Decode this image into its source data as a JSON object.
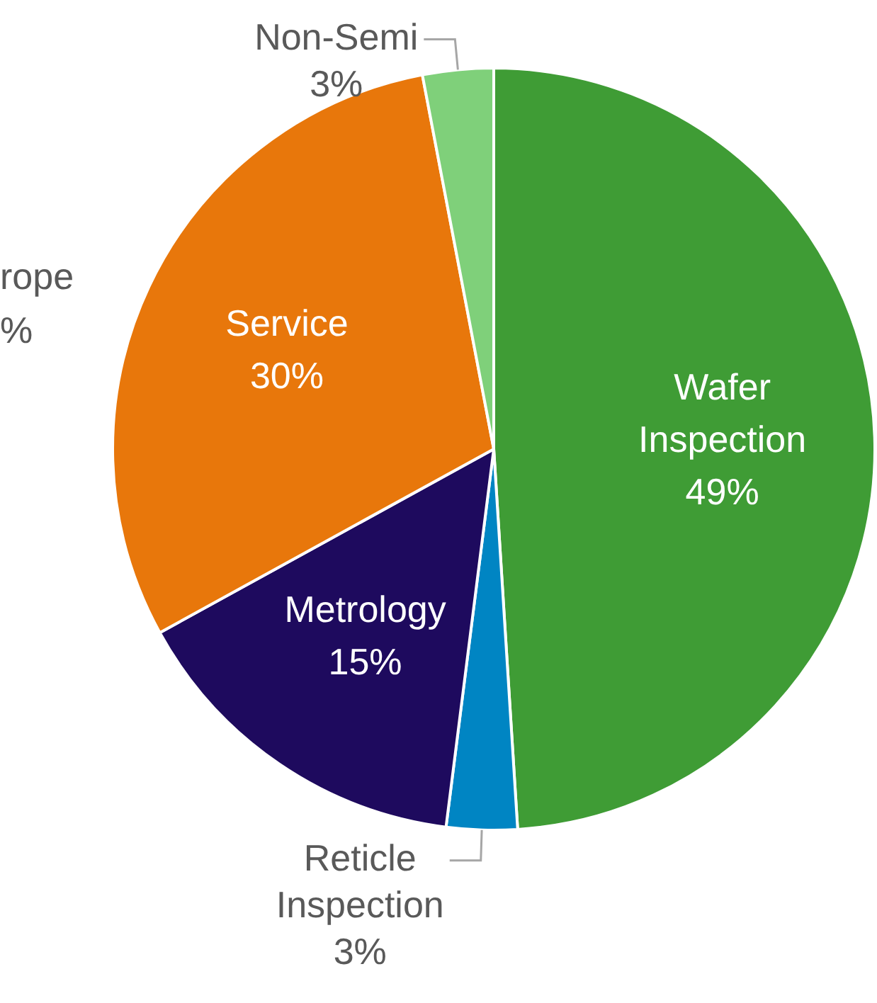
{
  "chart_data": {
    "type": "pie",
    "categories": [
      "Wafer Inspection",
      "Reticle Inspection",
      "Metrology",
      "Service",
      "Non-Semi"
    ],
    "values": [
      49,
      3,
      15,
      30,
      3
    ],
    "colors": [
      "#3f9c35",
      "#0085c3",
      "#1e0a5e",
      "#e8770b",
      "#7fd07a"
    ],
    "annotations": [
      "rope",
      "%"
    ],
    "value_labels": [
      "49%",
      "3%",
      "15%",
      "30%",
      "3%"
    ],
    "legend": false
  }
}
